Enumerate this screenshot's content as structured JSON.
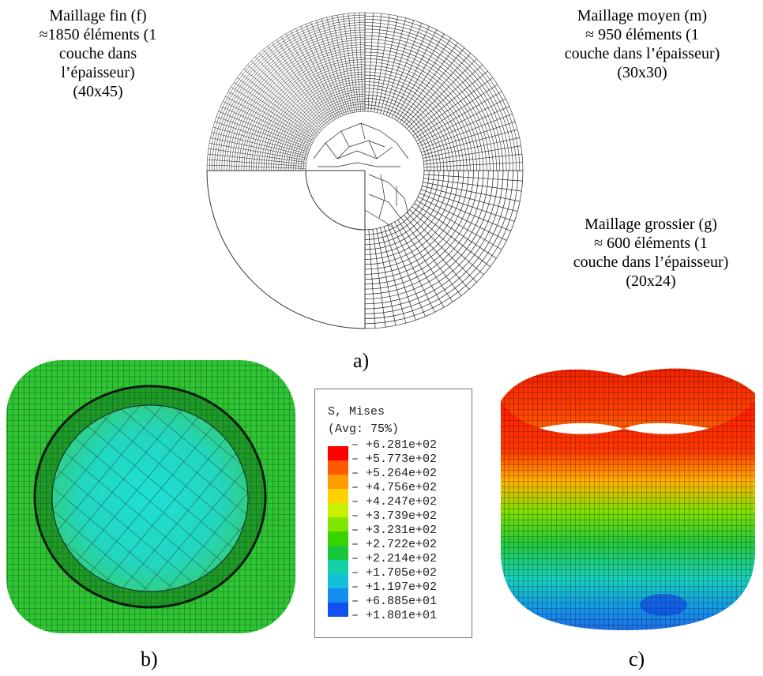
{
  "labels": {
    "fine": [
      "Maillage fin (f)",
      "≈1850 éléments (1",
      "couche dans",
      "l’épaisseur)",
      "(40x45)"
    ],
    "medium": [
      "Maillage moyen (m)",
      "≈ 950 éléments (1",
      "couche dans l’épaisseur)",
      "(30x30)"
    ],
    "coarse": [
      "Maillage grossier (g)",
      "≈ 600 éléments (1",
      "couche dans l’épaisseur)",
      "(20x24)"
    ]
  },
  "subfig": {
    "a": "a)",
    "b": "b)",
    "c": "c)"
  },
  "legend": {
    "title1": "S, Mises",
    "title2": "(Avg: 75%)",
    "values": [
      "+6.281e+02",
      "+5.773e+02",
      "+5.264e+02",
      "+4.756e+02",
      "+4.247e+02",
      "+3.739e+02",
      "+3.231e+02",
      "+2.722e+02",
      "+2.214e+02",
      "+1.705e+02",
      "+1.197e+02",
      "+6.885e+01",
      "+1.801e+01"
    ],
    "colors": [
      "#ff0000",
      "#ff5a00",
      "#ff9c00",
      "#ffd200",
      "#c8f000",
      "#80e600",
      "#38d400",
      "#18c83c",
      "#14d2a8",
      "#14c0d8",
      "#148cf0",
      "#1450f0",
      "#0a14d2"
    ]
  }
}
